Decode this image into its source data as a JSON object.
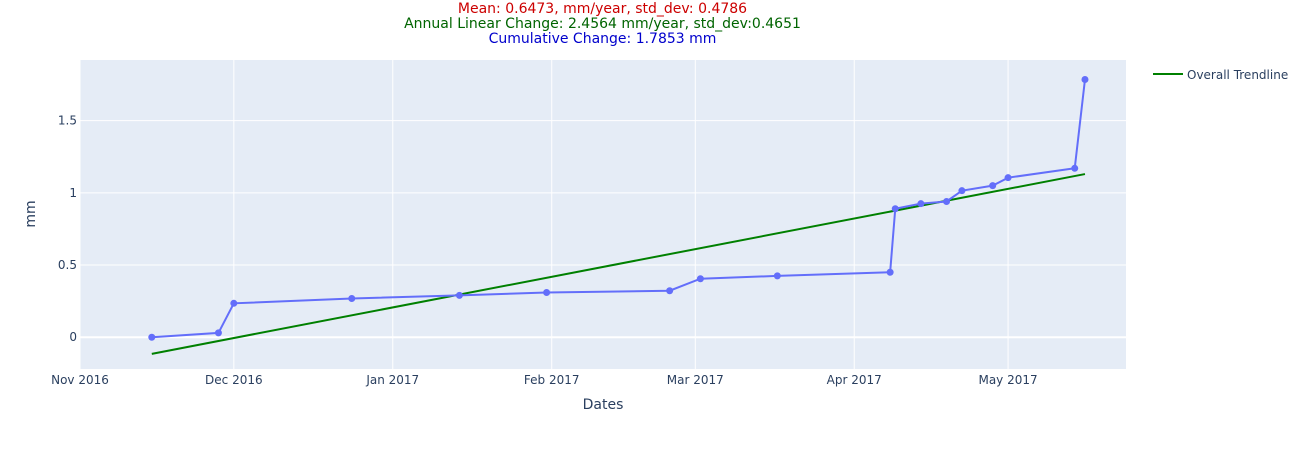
{
  "title_lines": {
    "mean": "Mean: 0.6473, mm/year, std_dev: 0.4786",
    "annual": "Annual Linear Change: 2.4564 mm/year, std_dev:0.4651",
    "cumulative": "Cumulative Change: 1.7853 mm"
  },
  "colors": {
    "mean": "#cc0000",
    "annual": "#006400",
    "cumulative": "#0000cc",
    "series": "#636efa",
    "trend": "#008000",
    "plot_bg": "#e5ecf6"
  },
  "chart_data": {
    "type": "line",
    "xlabel": "Dates",
    "ylabel": "mm",
    "xlim": [
      "2016-11-01",
      "2017-05-24"
    ],
    "ylim": [
      -0.22,
      1.92
    ],
    "grid": true,
    "legend_position": "top-right",
    "x_ticks": [
      {
        "date": "2016-11-01",
        "label": "Nov 2016"
      },
      {
        "date": "2016-12-01",
        "label": "Dec 2016"
      },
      {
        "date": "2017-01-01",
        "label": "Jan 2017"
      },
      {
        "date": "2017-02-01",
        "label": "Feb 2017"
      },
      {
        "date": "2017-03-01",
        "label": "Mar 2017"
      },
      {
        "date": "2017-04-01",
        "label": "Apr 2017"
      },
      {
        "date": "2017-05-01",
        "label": "May 2017"
      }
    ],
    "y_ticks": [
      {
        "value": 0,
        "label": "0"
      },
      {
        "value": 0.5,
        "label": "0.5"
      },
      {
        "value": 1,
        "label": "1"
      },
      {
        "value": 1.5,
        "label": "1.5"
      }
    ],
    "series": [
      {
        "mode": "lines+markers",
        "points": [
          {
            "x": "2016-11-15",
            "y": 0.0
          },
          {
            "x": "2016-11-28",
            "y": 0.03
          },
          {
            "x": "2016-12-01",
            "y": 0.235
          },
          {
            "x": "2016-12-24",
            "y": 0.268
          },
          {
            "x": "2017-01-14",
            "y": 0.29
          },
          {
            "x": "2017-01-31",
            "y": 0.31
          },
          {
            "x": "2017-02-24",
            "y": 0.322
          },
          {
            "x": "2017-03-02",
            "y": 0.405
          },
          {
            "x": "2017-03-17",
            "y": 0.425
          },
          {
            "x": "2017-04-08",
            "y": 0.45
          },
          {
            "x": "2017-04-09",
            "y": 0.89
          },
          {
            "x": "2017-04-14",
            "y": 0.925
          },
          {
            "x": "2017-04-19",
            "y": 0.94
          },
          {
            "x": "2017-04-22",
            "y": 1.015
          },
          {
            "x": "2017-04-28",
            "y": 1.05
          },
          {
            "x": "2017-05-01",
            "y": 1.105
          },
          {
            "x": "2017-05-14",
            "y": 1.17
          },
          {
            "x": "2017-05-16",
            "y": 1.785
          }
        ]
      },
      {
        "name": "Overall Trendline",
        "mode": "lines",
        "points": [
          {
            "x": "2016-11-15",
            "y": -0.115
          },
          {
            "x": "2017-05-16",
            "y": 1.13
          }
        ]
      }
    ]
  }
}
